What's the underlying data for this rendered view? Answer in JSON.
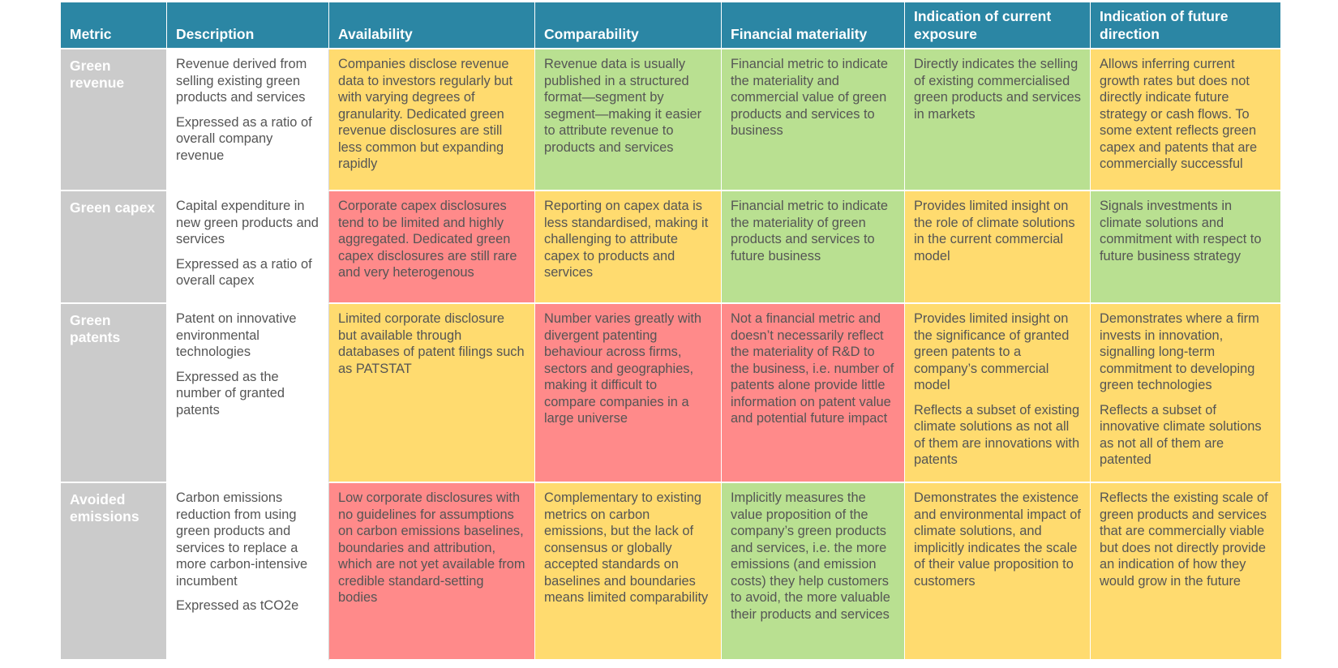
{
  "colors": {
    "header": "#2b86a4",
    "metric_column": "#cbcbcb",
    "yellow": "#ffdb6f",
    "green": "#b9e091",
    "red": "#ff8a8a"
  },
  "headers": [
    "Metric",
    "Description",
    "Availability",
    "Comparability",
    "Financial materiality",
    "Indication of current exposure",
    "Indication of future direction"
  ],
  "rows": [
    {
      "metric": "Green revenue",
      "description": [
        "Revenue derived from selling existing green products and services",
        "Expressed as a ratio of overall company revenue"
      ],
      "cells": [
        {
          "color": "yellow",
          "paras": [
            "Companies disclose revenue data to investors regularly but with varying degrees of granularity. Dedicated green revenue disclosures are still less common but expanding rapidly"
          ]
        },
        {
          "color": "green",
          "paras": [
            "Revenue data is usually published in a structured format—segment by segment—making it easier to attribute revenue to products and services"
          ]
        },
        {
          "color": "green",
          "paras": [
            "Financial metric to indicate the materiality and commercial value of green products and services to business"
          ]
        },
        {
          "color": "green",
          "paras": [
            "Directly indicates the selling of existing commercialised green products and services in markets"
          ]
        },
        {
          "color": "yellow",
          "paras": [
            "Allows inferring current growth rates but does not directly indicate future strategy or cash flows. To some extent reflects green capex and patents that are commercially successful"
          ]
        }
      ]
    },
    {
      "metric": "Green capex",
      "description": [
        "Capital expenditure in new green products and services",
        "Expressed as a ratio of overall capex"
      ],
      "cells": [
        {
          "color": "red",
          "paras": [
            "Corporate capex disclosures tend to be limited and highly aggregated. Dedicated green capex disclosures are still rare and very heterogenous"
          ]
        },
        {
          "color": "yellow",
          "paras": [
            "Reporting on capex data is less standardised, making it challenging to attribute capex to products and services"
          ]
        },
        {
          "color": "green",
          "paras": [
            "Financial metric to indicate the materiality of green products and services to future business"
          ]
        },
        {
          "color": "yellow",
          "paras": [
            "Provides limited insight on the role of climate solutions in the current commercial model"
          ]
        },
        {
          "color": "green",
          "paras": [
            "Signals investments in climate solutions and commitment with respect to future business strategy"
          ]
        }
      ]
    },
    {
      "metric": "Green patents",
      "description": [
        "Patent on innovative environmental technologies",
        "Expressed as the number of granted patents"
      ],
      "cells": [
        {
          "color": "yellow",
          "paras": [
            "Limited corporate disclosure but available through databases of patent filings such as PATSTAT"
          ]
        },
        {
          "color": "red",
          "paras": [
            "Number varies greatly with divergent patenting behaviour across firms, sectors and geographies, making it difficult to compare companies in a large universe"
          ]
        },
        {
          "color": "red",
          "paras": [
            "Not a financial metric and doesn’t necessarily reflect the materiality of R&D to the business, i.e. number of patents alone provide little information on patent value and potential future impact"
          ]
        },
        {
          "color": "yellow",
          "paras": [
            "Provides limited insight on the significance of granted green patents to a company’s commercial model",
            "Reflects a subset of existing climate solutions as not all of them are innovations with patents"
          ]
        },
        {
          "color": "yellow",
          "paras": [
            "Demonstrates where a firm invests in innovation, signalling long-term commitment to developing green technologies",
            "Reflects a subset of innovative climate solutions as not all of them are patented"
          ]
        }
      ]
    },
    {
      "metric": "Avoided emissions",
      "description": [
        "Carbon emissions reduction from using green products and services to replace a more carbon-intensive incumbent",
        "Expressed as tCO2e"
      ],
      "cells": [
        {
          "color": "red",
          "paras": [
            "Low corporate disclosures with no guidelines for assumptions on carbon emissions baselines, boundaries and attribution, which are not yet available from credible standard-setting bodies"
          ]
        },
        {
          "color": "yellow",
          "paras": [
            "Complementary to existing metrics on carbon emissions, but the lack of consensus or globally accepted standards on baselines and boundaries means limited comparability"
          ]
        },
        {
          "color": "green",
          "paras": [
            "Implicitly measures the value proposition of the company’s green products and services, i.e. the more emissions (and emission costs) they help customers to avoid, the more valuable their products and services"
          ]
        },
        {
          "color": "yellow",
          "paras": [
            "Demonstrates the existence and environmental impact of climate solutions, and implicitly indicates the scale of their value proposition to customers"
          ]
        },
        {
          "color": "yellow",
          "paras": [
            "Reflects the existing scale of green products and services that are commercially viable but does not directly provide an indication of how they would grow in the future"
          ]
        }
      ]
    }
  ]
}
